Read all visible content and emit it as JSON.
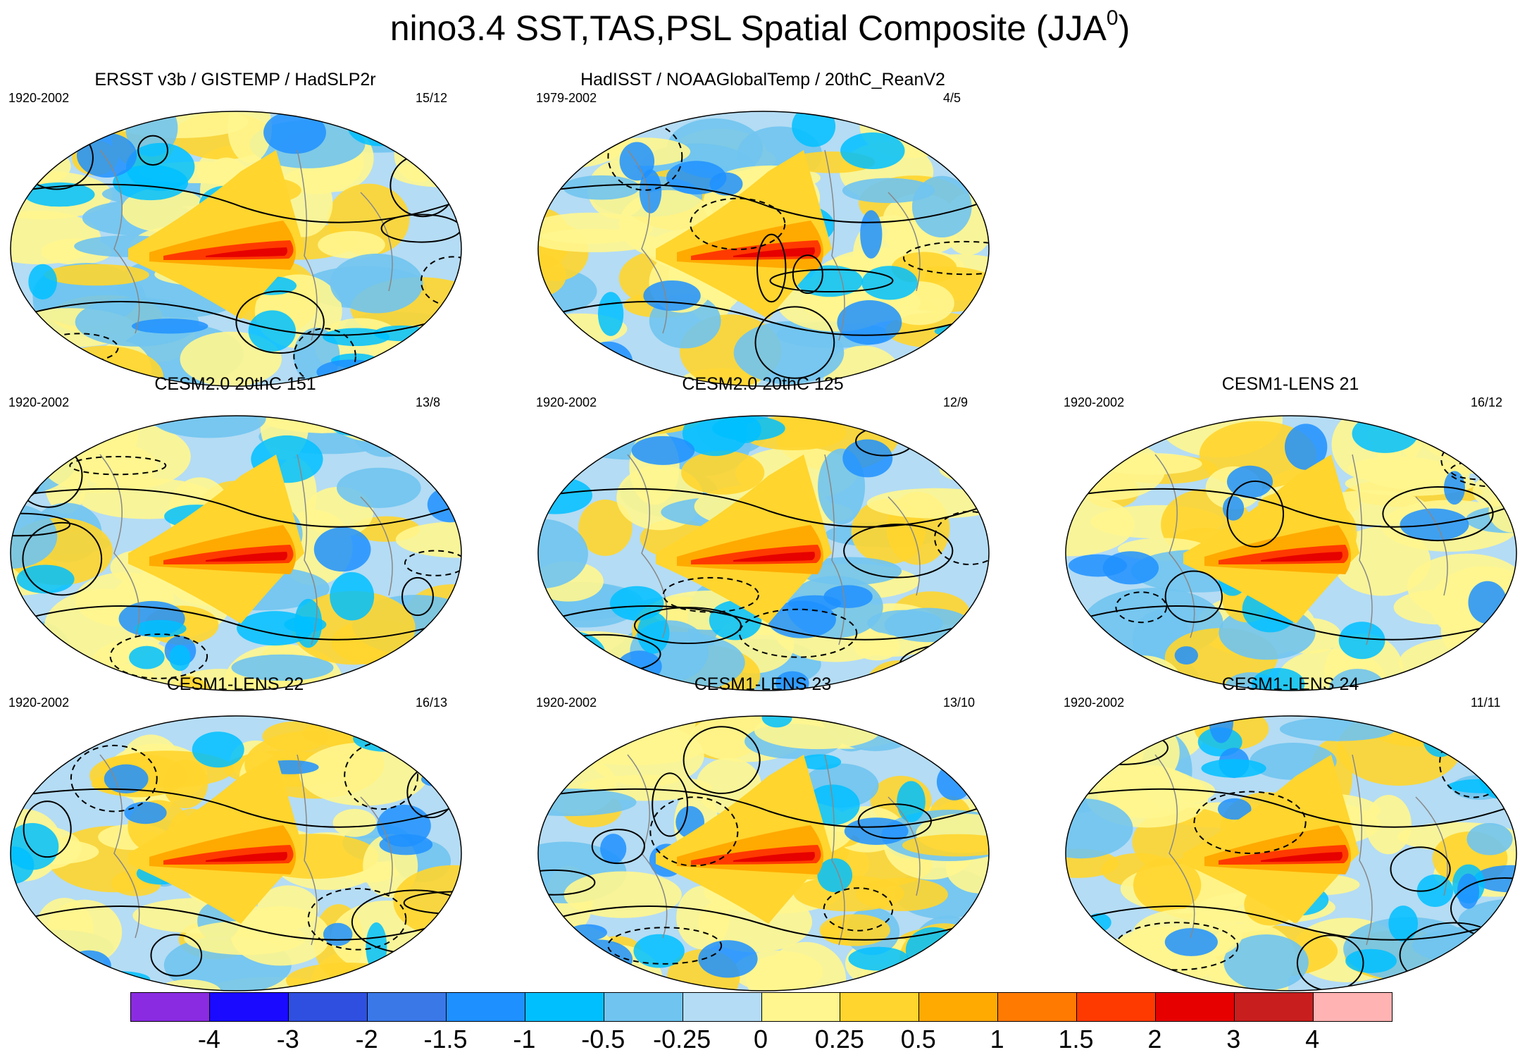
{
  "figure": {
    "title_main": "nino3.4 SST,TAS,PSL Spatial Composite (JJA",
    "title_sup": "0",
    "title_close": ")"
  },
  "panels": [
    {
      "title": "ERSST v3b / GISTEMP / HadSLP2r",
      "years": "1920-2002",
      "count": "15/12"
    },
    {
      "title": "HadISST / NOAAGlobalTemp / 20thC_ReanV2",
      "years": "1979-2002",
      "count": "4/5"
    },
    {
      "title": "CESM2.0 20thC 151",
      "years": "1920-2002",
      "count": "13/8"
    },
    {
      "title": "CESM2.0 20thC 125",
      "years": "1920-2002",
      "count": "12/9"
    },
    {
      "title": "CESM1-LENS 21",
      "years": "1920-2002",
      "count": "16/12"
    },
    {
      "title": "CESM1-LENS 22",
      "years": "1920-2002",
      "count": "16/13"
    },
    {
      "title": "CESM1-LENS 23",
      "years": "1920-2002",
      "count": "13/10"
    },
    {
      "title": "CESM1-LENS 24",
      "years": "1920-2002",
      "count": "11/11"
    }
  ],
  "colorbar": {
    "colors": [
      "#8a2be2",
      "#1a0aff",
      "#2f4fe0",
      "#3a78e8",
      "#1e90ff",
      "#00bfff",
      "#70c4f0",
      "#b4dcf4",
      "#fff68f",
      "#ffd52e",
      "#ffaa00",
      "#ff7a00",
      "#ff3a00",
      "#e60000",
      "#c81e1e",
      "#ffb3b3"
    ],
    "labels": [
      "-4",
      "-3",
      "-2",
      "-1.5",
      "-1",
      "-0.5",
      "-0.25",
      "0",
      "0.25",
      "0.5",
      "1",
      "1.5",
      "2",
      "3",
      "4"
    ]
  }
}
